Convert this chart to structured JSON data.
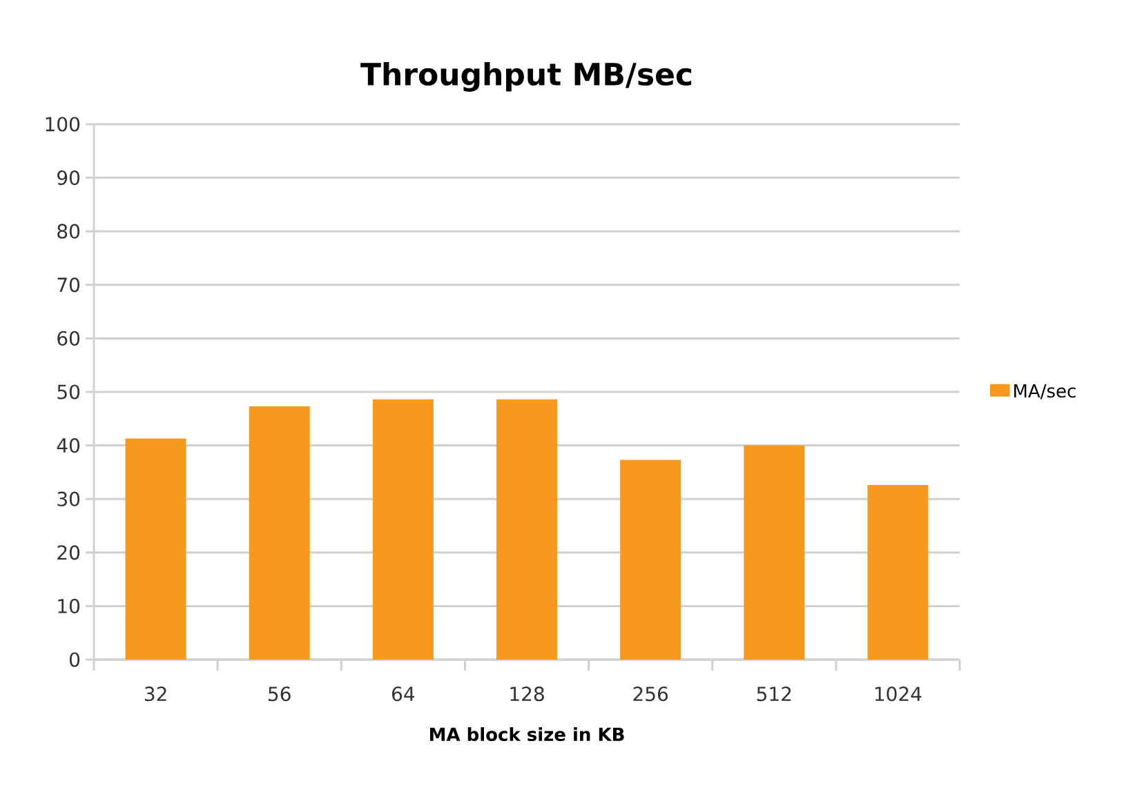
{
  "chart_data": {
    "type": "bar",
    "title": "Throughput MB/sec",
    "xlabel": "MA block size in KB",
    "categories": [
      "32",
      "56",
      "64",
      "128",
      "256",
      "512",
      "1024"
    ],
    "series": [
      {
        "name": "MA/sec",
        "color": "#f7991f",
        "values": [
          41.3,
          47.3,
          48.6,
          48.6,
          37.3,
          40,
          32.6
        ]
      }
    ],
    "ylim": [
      0,
      100
    ],
    "yticks": [
      0,
      10,
      20,
      30,
      40,
      50,
      60,
      70,
      80,
      90,
      100
    ],
    "grid": "y",
    "legend": "right"
  }
}
